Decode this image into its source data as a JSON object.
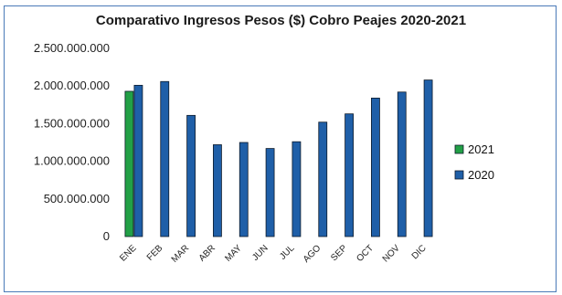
{
  "chart_data": {
    "type": "bar",
    "title": "Comparativo Ingresos Pesos ($) Cobro Peajes 2020-2021",
    "categories": [
      "ENE",
      "FEB",
      "MAR",
      "ABR",
      "MAY",
      "JUN",
      "JUL",
      "AGO",
      "SEP",
      "OCT",
      "NOV",
      "DIC"
    ],
    "series": [
      {
        "name": "2021",
        "color": "#22a046",
        "values": [
          1930000000,
          null,
          null,
          null,
          null,
          null,
          null,
          null,
          null,
          null,
          null,
          null
        ]
      },
      {
        "name": "2020",
        "color": "#1f5fa8",
        "values": [
          2010000000,
          2060000000,
          1610000000,
          1220000000,
          1250000000,
          1170000000,
          1260000000,
          1520000000,
          1630000000,
          1840000000,
          1920000000,
          2080000000
        ]
      }
    ],
    "ylim": [
      0,
      2500000000
    ],
    "yticks": [
      0,
      500000000,
      1000000000,
      1500000000,
      2000000000,
      2500000000
    ],
    "ytick_labels": [
      "0",
      "500.000.000",
      "1.000.000.000",
      "1.500.000.000",
      "2.000.000.000",
      "2.500.000.000"
    ],
    "legend_position": "right",
    "grid": false
  }
}
